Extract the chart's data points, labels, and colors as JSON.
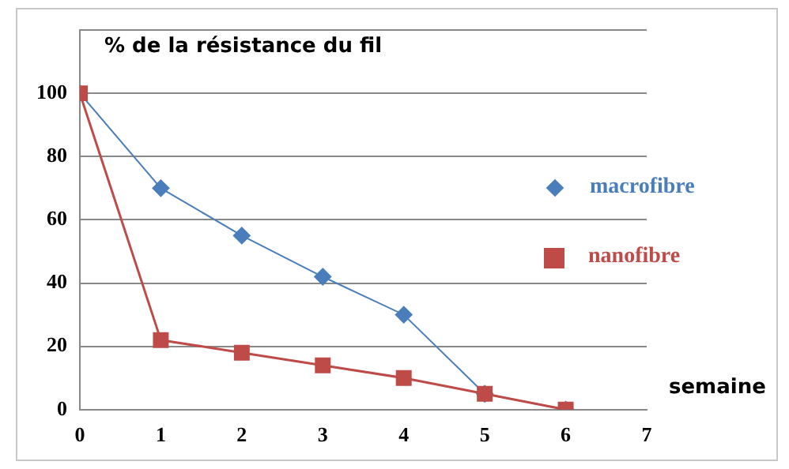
{
  "chart_data": {
    "type": "line",
    "ylabel": "% de la résistance du fil",
    "xlabel": "semaine",
    "x": [
      0,
      1,
      2,
      3,
      4,
      5,
      6
    ],
    "xlim": [
      0,
      7
    ],
    "xticks": [
      0,
      1,
      2,
      3,
      4,
      5,
      6,
      7
    ],
    "ylim": [
      0,
      120
    ],
    "yticks": [
      0,
      20,
      40,
      60,
      80,
      100,
      {
        "value": 120,
        "label": null
      }
    ],
    "grid": "y",
    "legend": "right",
    "line_style": "solid",
    "series": [
      {
        "name": "macrofibre",
        "color": "#4a7ebb",
        "marker": "diamond",
        "values": [
          100,
          70,
          55,
          42,
          30,
          5,
          0
        ]
      },
      {
        "name": "nanofibre",
        "color": "#be4b48",
        "marker": "square",
        "values": [
          100,
          22,
          18,
          14,
          10,
          5,
          0
        ]
      }
    ]
  }
}
